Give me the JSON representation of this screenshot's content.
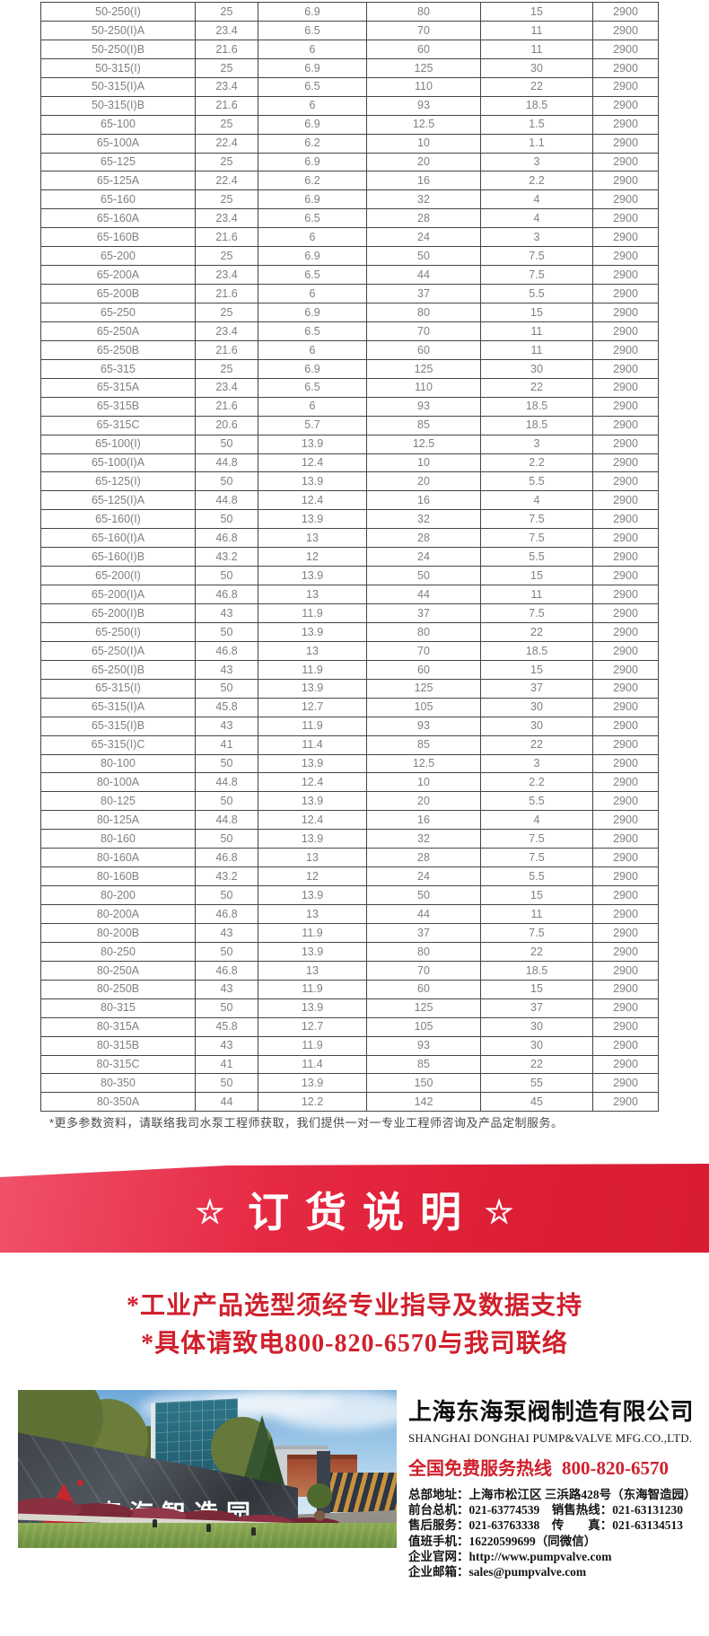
{
  "table": {
    "rows": [
      [
        "50-250(I)",
        "25",
        "6.9",
        "80",
        "15",
        "2900"
      ],
      [
        "50-250(I)A",
        "23.4",
        "6.5",
        "70",
        "11",
        "2900"
      ],
      [
        "50-250(I)B",
        "21.6",
        "6",
        "60",
        "11",
        "2900"
      ],
      [
        "50-315(I)",
        "25",
        "6.9",
        "125",
        "30",
        "2900"
      ],
      [
        "50-315(I)A",
        "23.4",
        "6.5",
        "110",
        "22",
        "2900"
      ],
      [
        "50-315(I)B",
        "21.6",
        "6",
        "93",
        "18.5",
        "2900"
      ],
      [
        "65-100",
        "25",
        "6.9",
        "12.5",
        "1.5",
        "2900"
      ],
      [
        "65-100A",
        "22.4",
        "6.2",
        "10",
        "1.1",
        "2900"
      ],
      [
        "65-125",
        "25",
        "6.9",
        "20",
        "3",
        "2900"
      ],
      [
        "65-125A",
        "22.4",
        "6.2",
        "16",
        "2.2",
        "2900"
      ],
      [
        "65-160",
        "25",
        "6.9",
        "32",
        "4",
        "2900"
      ],
      [
        "65-160A",
        "23.4",
        "6.5",
        "28",
        "4",
        "2900"
      ],
      [
        "65-160B",
        "21.6",
        "6",
        "24",
        "3",
        "2900"
      ],
      [
        "65-200",
        "25",
        "6.9",
        "50",
        "7.5",
        "2900"
      ],
      [
        "65-200A",
        "23.4",
        "6.5",
        "44",
        "7.5",
        "2900"
      ],
      [
        "65-200B",
        "21.6",
        "6",
        "37",
        "5.5",
        "2900"
      ],
      [
        "65-250",
        "25",
        "6.9",
        "80",
        "15",
        "2900"
      ],
      [
        "65-250A",
        "23.4",
        "6.5",
        "70",
        "11",
        "2900"
      ],
      [
        "65-250B",
        "21.6",
        "6",
        "60",
        "11",
        "2900"
      ],
      [
        "65-315",
        "25",
        "6.9",
        "125",
        "30",
        "2900"
      ],
      [
        "65-315A",
        "23.4",
        "6.5",
        "110",
        "22",
        "2900"
      ],
      [
        "65-315B",
        "21.6",
        "6",
        "93",
        "18.5",
        "2900"
      ],
      [
        "65-315C",
        "20.6",
        "5.7",
        "85",
        "18.5",
        "2900"
      ],
      [
        "65-100(I)",
        "50",
        "13.9",
        "12.5",
        "3",
        "2900"
      ],
      [
        "65-100(I)A",
        "44.8",
        "12.4",
        "10",
        "2.2",
        "2900"
      ],
      [
        "65-125(I)",
        "50",
        "13.9",
        "20",
        "5.5",
        "2900"
      ],
      [
        "65-125(I)A",
        "44.8",
        "12.4",
        "16",
        "4",
        "2900"
      ],
      [
        "65-160(I)",
        "50",
        "13.9",
        "32",
        "7.5",
        "2900"
      ],
      [
        "65-160(I)A",
        "46.8",
        "13",
        "28",
        "7.5",
        "2900"
      ],
      [
        "65-160(I)B",
        "43.2",
        "12",
        "24",
        "5.5",
        "2900"
      ],
      [
        "65-200(I)",
        "50",
        "13.9",
        "50",
        "15",
        "2900"
      ],
      [
        "65-200(I)A",
        "46.8",
        "13",
        "44",
        "11",
        "2900"
      ],
      [
        "65-200(I)B",
        "43",
        "11.9",
        "37",
        "7.5",
        "2900"
      ],
      [
        "65-250(I)",
        "50",
        "13.9",
        "80",
        "22",
        "2900"
      ],
      [
        "65-250(I)A",
        "46.8",
        "13",
        "70",
        "18.5",
        "2900"
      ],
      [
        "65-250(I)B",
        "43",
        "11.9",
        "60",
        "15",
        "2900"
      ],
      [
        "65-315(I)",
        "50",
        "13.9",
        "125",
        "37",
        "2900"
      ],
      [
        "65-315(I)A",
        "45.8",
        "12.7",
        "105",
        "30",
        "2900"
      ],
      [
        "65-315(I)B",
        "43",
        "11.9",
        "93",
        "30",
        "2900"
      ],
      [
        "65-315(I)C",
        "41",
        "11.4",
        "85",
        "22",
        "2900"
      ],
      [
        "80-100",
        "50",
        "13.9",
        "12.5",
        "3",
        "2900"
      ],
      [
        "80-100A",
        "44.8",
        "12.4",
        "10",
        "2.2",
        "2900"
      ],
      [
        "80-125",
        "50",
        "13.9",
        "20",
        "5.5",
        "2900"
      ],
      [
        "80-125A",
        "44.8",
        "12.4",
        "16",
        "4",
        "2900"
      ],
      [
        "80-160",
        "50",
        "13.9",
        "32",
        "7.5",
        "2900"
      ],
      [
        "80-160A",
        "46.8",
        "13",
        "28",
        "7.5",
        "2900"
      ],
      [
        "80-160B",
        "43.2",
        "12",
        "24",
        "5.5",
        "2900"
      ],
      [
        "80-200",
        "50",
        "13.9",
        "50",
        "15",
        "2900"
      ],
      [
        "80-200A",
        "46.8",
        "13",
        "44",
        "11",
        "2900"
      ],
      [
        "80-200B",
        "43",
        "11.9",
        "37",
        "7.5",
        "2900"
      ],
      [
        "80-250",
        "50",
        "13.9",
        "80",
        "22",
        "2900"
      ],
      [
        "80-250A",
        "46.8",
        "13",
        "70",
        "18.5",
        "2900"
      ],
      [
        "80-250B",
        "43",
        "11.9",
        "60",
        "15",
        "2900"
      ],
      [
        "80-315",
        "50",
        "13.9",
        "125",
        "37",
        "2900"
      ],
      [
        "80-315A",
        "45.8",
        "12.7",
        "105",
        "30",
        "2900"
      ],
      [
        "80-315B",
        "43",
        "11.9",
        "93",
        "30",
        "2900"
      ],
      [
        "80-315C",
        "41",
        "11.4",
        "85",
        "22",
        "2900"
      ],
      [
        "80-350",
        "50",
        "13.9",
        "150",
        "55",
        "2900"
      ],
      [
        "80-350A",
        "44",
        "12.2",
        "142",
        "45",
        "2900"
      ]
    ]
  },
  "note": "*更多参数资料，请联络我司水泵工程师获取，我们提供一对一专业工程师咨询及产品定制服务。",
  "banner": {
    "star_left": "☆",
    "star_right": "☆",
    "title": "订货说明"
  },
  "order_notes": [
    "*工业产品选型须经专业指导及数据支持",
    "*具体请致电800-820-6570与我司联络"
  ],
  "photo": {
    "sign_text": "東海智造园"
  },
  "company": {
    "name_cn": "上海东海泵阀制造有限公司",
    "name_en": "SHANGHAI DONGHAI PUMP&VALVE MFG.CO.,LTD.",
    "hotline_label": "全国免费服务热线",
    "hotline_number": "800-820-6570",
    "contacts": [
      "总部地址：上海市松江区 三浜路428号（东海智造园）",
      "前台总机：021-63774539　销售热线：021-63131230",
      "售后服务：021-63763338　传　　真：021-63134513",
      "值班手机：16220599699（同微信）",
      "企业官网：http://www.pumpvalve.com",
      "企业邮箱：sales@pumpvalve.com"
    ]
  },
  "colors": {
    "banner_red": "#e2213a",
    "accent_red": "#d0202c",
    "table_text": "#7d8184"
  }
}
